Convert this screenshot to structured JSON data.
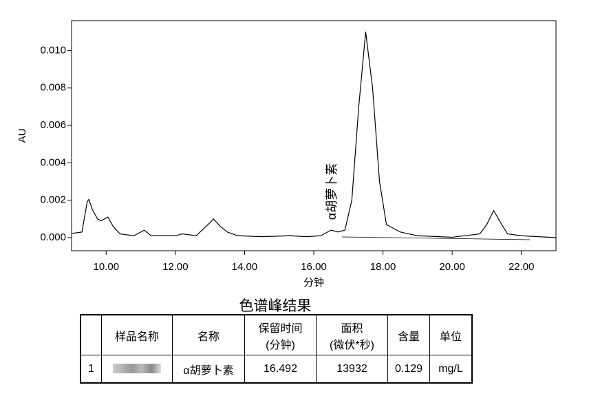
{
  "chart_data": {
    "type": "line",
    "y_label": "AU",
    "x_label": "分钟",
    "x": [
      9.0,
      9.3,
      9.45,
      9.5,
      9.6,
      9.75,
      9.85,
      10.05,
      10.2,
      10.4,
      10.8,
      11.1,
      11.3,
      12.0,
      12.2,
      12.6,
      13.0,
      13.1,
      13.3,
      13.5,
      13.8,
      14.5,
      15.3,
      15.8,
      16.2,
      16.5,
      16.7,
      16.9,
      17.1,
      17.3,
      17.5,
      17.7,
      17.9,
      18.1,
      18.5,
      19.0,
      20.0,
      20.8,
      21.0,
      21.2,
      21.4,
      21.6,
      22.0,
      23.0
    ],
    "values": [
      0.00022,
      0.0003,
      0.0019,
      0.00205,
      0.0015,
      0.001,
      0.0009,
      0.0011,
      0.0006,
      0.0002,
      0.0001,
      0.0004,
      0.0001,
      0.0001,
      0.0002,
      0.0001,
      0.0008,
      0.001,
      0.0006,
      0.0003,
      0.0001,
      5e-05,
      0.0001,
      5e-05,
      0.0001,
      0.0004,
      0.0003,
      0.0004,
      0.002,
      0.007,
      0.011,
      0.008,
      0.003,
      0.0007,
      0.0003,
      0.0001,
      2e-05,
      0.0002,
      0.0007,
      0.00145,
      0.0008,
      0.0002,
      0.0001,
      0.0
    ],
    "color": "#000000",
    "xlim": [
      9,
      23
    ],
    "xticks": [
      {
        "value": 10,
        "label": "10.00"
      },
      {
        "value": 12,
        "label": "12.00"
      },
      {
        "value": 14,
        "label": "14.00"
      },
      {
        "value": 16,
        "label": "16.00"
      },
      {
        "value": 18,
        "label": "18.00"
      },
      {
        "value": 20,
        "label": "20.00"
      },
      {
        "value": 22,
        "label": "22.00"
      }
    ],
    "ylim": [
      -0.0007,
      0.0116
    ],
    "yticks": [
      {
        "value": 0,
        "label": "0.000"
      },
      {
        "value": 0.002,
        "label": "0.002"
      },
      {
        "value": 0.004,
        "label": "0.004"
      },
      {
        "value": 0.006,
        "label": "0.006"
      },
      {
        "value": 0.008,
        "label": "0.008"
      },
      {
        "value": 0.01,
        "label": "0.010"
      }
    ],
    "annotations": [
      "α胡萝卜素"
    ]
  },
  "table": {
    "title": "色谱峰结果",
    "header": [
      [
        "样品名称"
      ],
      [
        "名称"
      ],
      [
        "保留时间",
        "(分钟)"
      ],
      [
        "面积",
        "(微伏*秒)"
      ],
      [
        "含量"
      ],
      [
        "单位"
      ]
    ],
    "rows": [
      [
        "1",
        "α胡萝卜素",
        "16.492",
        "13932",
        "0.129",
        "mg/L"
      ]
    ]
  }
}
